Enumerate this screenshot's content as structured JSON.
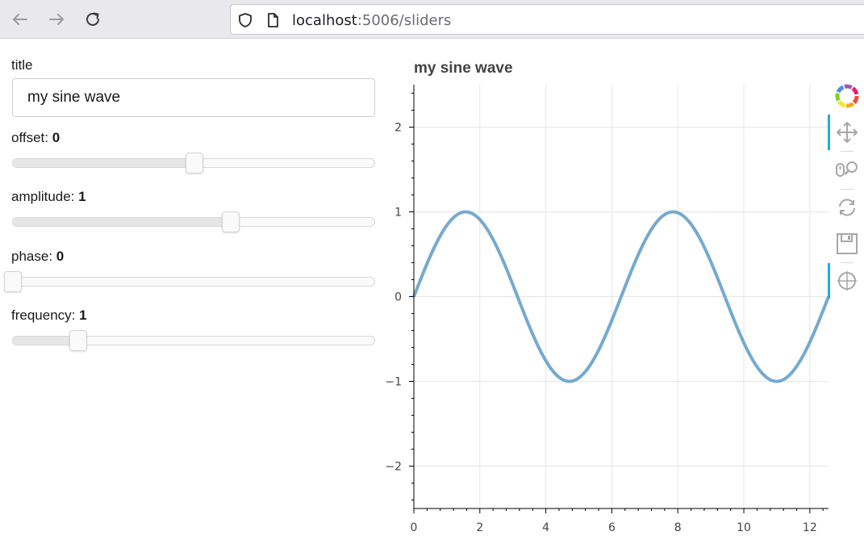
{
  "browser": {
    "url_host": "localhost",
    "url_path": ":5006/sliders",
    "icons": [
      "back-arrow-icon",
      "forward-arrow-icon",
      "reload-icon",
      "shield-icon",
      "page-icon"
    ]
  },
  "widgets": {
    "title": {
      "label": "title",
      "value": "my sine wave"
    },
    "offset": {
      "label": "offset: ",
      "value": "0",
      "start": -5,
      "end": 5,
      "fraction": 0.5
    },
    "amplitude": {
      "label": "amplitude: ",
      "value": "1",
      "start": -5,
      "end": 5,
      "fraction": 0.6
    },
    "phase": {
      "label": "phase: ",
      "value": "0",
      "start": 0,
      "end": 6.2832,
      "fraction": 0.0
    },
    "frequency": {
      "label": "frequency: ",
      "value": "1",
      "start": 0.1,
      "end": 5.1,
      "fraction": 0.18
    }
  },
  "plot": {
    "title": "my sine wave",
    "line_color": "#76a9cf",
    "toolbar": {
      "logo": "bokeh-logo-icon",
      "tools": [
        "pan-icon",
        "wheel-zoom-icon",
        "reset-icon",
        "save-icon",
        "crosshair-icon"
      ],
      "active": [
        "pan-icon",
        "crosshair-icon"
      ],
      "accent": "#26aae1"
    }
  },
  "chart_data": {
    "type": "line",
    "title": "my sine wave",
    "xlabel": "",
    "ylabel": "",
    "xlim": [
      0,
      12.566
    ],
    "ylim": [
      -2.5,
      2.5
    ],
    "x_ticks": [
      0,
      2,
      4,
      6,
      8,
      10,
      12
    ],
    "y_ticks": [
      2,
      1,
      0,
      -1,
      -2
    ],
    "x_tick_labels": [
      "0",
      "2",
      "4",
      "6",
      "8",
      "10",
      "12"
    ],
    "y_tick_labels": [
      "2",
      "1",
      "0",
      "−1",
      "−2"
    ],
    "grid": true,
    "series": [
      {
        "color": "#76a9cf",
        "x": [
          0,
          0.785,
          1.571,
          2.356,
          3.142,
          3.927,
          4.712,
          5.498,
          6.283,
          7.069,
          7.854,
          8.639,
          9.425,
          10.21,
          10.996,
          11.781,
          12.566
        ],
        "y": [
          0,
          0.707,
          1,
          0.707,
          0,
          -0.707,
          -1,
          -0.707,
          0,
          0.707,
          1,
          0.707,
          0,
          -0.707,
          -1,
          -0.707,
          0
        ]
      }
    ]
  }
}
